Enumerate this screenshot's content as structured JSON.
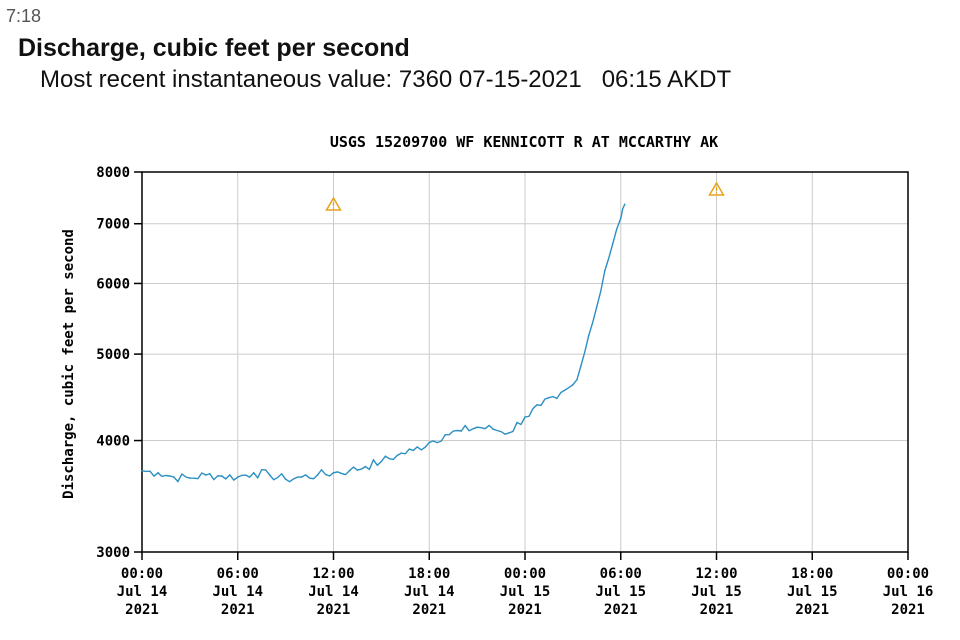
{
  "status_bar": {
    "time": "7:18"
  },
  "header": {
    "title": "Discharge, cubic feet per second",
    "recent_label": "Most recent instantaneous value: 7360 07-15-2021   06:15 AKDT"
  },
  "colors": {
    "series": "#2a8fc1",
    "grid": "#cccccc",
    "warning": "#e6a21a",
    "axis": "#000000"
  },
  "chart_data": {
    "type": "line",
    "title": "USGS 15209700 WF KENNICOTT R AT MCCARTHY AK",
    "xlabel": "",
    "ylabel": "Discharge, cubic feet per second",
    "y_scale": "log",
    "ylim": [
      3000,
      8000
    ],
    "y_ticks": [
      "3000",
      "4000",
      "5000",
      "6000",
      "7000",
      "8000"
    ],
    "x_range": [
      "2021-07-14 00:00",
      "2021-07-16 00:00"
    ],
    "x_ticks": [
      {
        "time": "00:00",
        "date": "Jul 14",
        "year": "2021"
      },
      {
        "time": "06:00",
        "date": "Jul 14",
        "year": "2021"
      },
      {
        "time": "12:00",
        "date": "Jul 14",
        "year": "2021"
      },
      {
        "time": "18:00",
        "date": "Jul 14",
        "year": "2021"
      },
      {
        "time": "00:00",
        "date": "Jul 15",
        "year": "2021"
      },
      {
        "time": "06:00",
        "date": "Jul 15",
        "year": "2021"
      },
      {
        "time": "12:00",
        "date": "Jul 15",
        "year": "2021"
      },
      {
        "time": "18:00",
        "date": "Jul 15",
        "year": "2021"
      },
      {
        "time": "00:00",
        "date": "Jul 16",
        "year": "2021"
      }
    ],
    "grid": true,
    "warning_markers": [
      {
        "x": "2021-07-14 12:00"
      },
      {
        "x": "2021-07-15 12:00"
      }
    ],
    "series": [
      {
        "x": [
          "2021-07-14 00:00",
          "2021-07-14 01:00",
          "2021-07-14 02:00",
          "2021-07-14 03:00",
          "2021-07-14 04:00",
          "2021-07-14 05:00",
          "2021-07-14 06:00",
          "2021-07-14 07:00",
          "2021-07-14 08:00",
          "2021-07-14 09:00",
          "2021-07-14 10:00",
          "2021-07-14 11:00",
          "2021-07-14 12:00",
          "2021-07-14 13:00",
          "2021-07-14 14:00",
          "2021-07-14 15:00",
          "2021-07-14 16:00",
          "2021-07-14 17:00",
          "2021-07-14 18:00",
          "2021-07-14 19:00",
          "2021-07-14 20:00",
          "2021-07-14 21:00",
          "2021-07-14 22:00",
          "2021-07-14 23:00",
          "2021-07-15 00:00",
          "2021-07-15 01:00",
          "2021-07-15 02:00",
          "2021-07-15 03:00",
          "2021-07-15 03:30",
          "2021-07-15 04:00",
          "2021-07-15 04:30",
          "2021-07-15 05:00",
          "2021-07-15 05:30",
          "2021-07-15 06:00",
          "2021-07-15 06:15"
        ],
        "values": [
          3700,
          3680,
          3640,
          3630,
          3660,
          3650,
          3640,
          3680,
          3660,
          3620,
          3640,
          3660,
          3680,
          3700,
          3740,
          3790,
          3850,
          3900,
          3980,
          4060,
          4100,
          4140,
          4120,
          4080,
          4250,
          4380,
          4460,
          4620,
          4850,
          5250,
          5650,
          6200,
          6650,
          7100,
          7360
        ]
      }
    ]
  }
}
